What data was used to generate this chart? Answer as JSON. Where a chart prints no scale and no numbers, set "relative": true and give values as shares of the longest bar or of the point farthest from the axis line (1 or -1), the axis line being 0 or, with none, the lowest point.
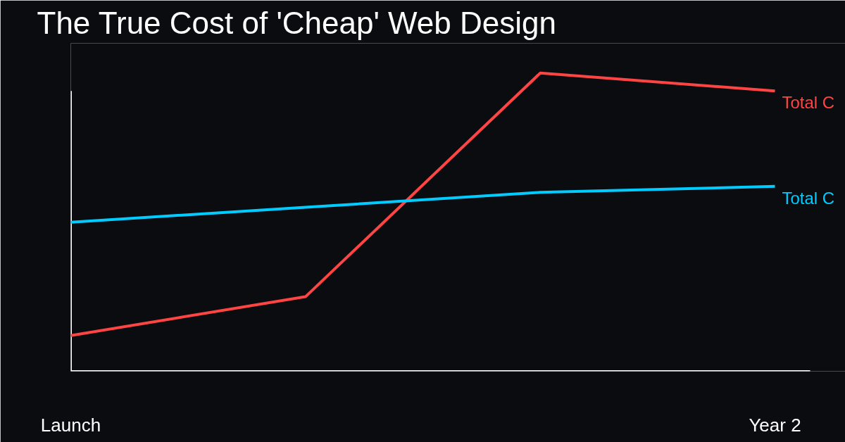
{
  "chart_data": {
    "type": "line",
    "title": "The True Cost of 'Cheap' Web Design",
    "relative": true,
    "categories": [
      "Launch",
      null,
      null,
      "Year 2"
    ],
    "series": [
      {
        "name": "Total C",
        "color": "#ff4444",
        "values": [
          0.12,
          0.25,
          1,
          0.94
        ]
      },
      {
        "name": "Total C",
        "color": "#00ccff",
        "values": [
          0.5,
          0.55,
          0.6,
          0.62
        ]
      }
    ],
    "grid": false,
    "marker": "none",
    "line_style": "solid"
  }
}
